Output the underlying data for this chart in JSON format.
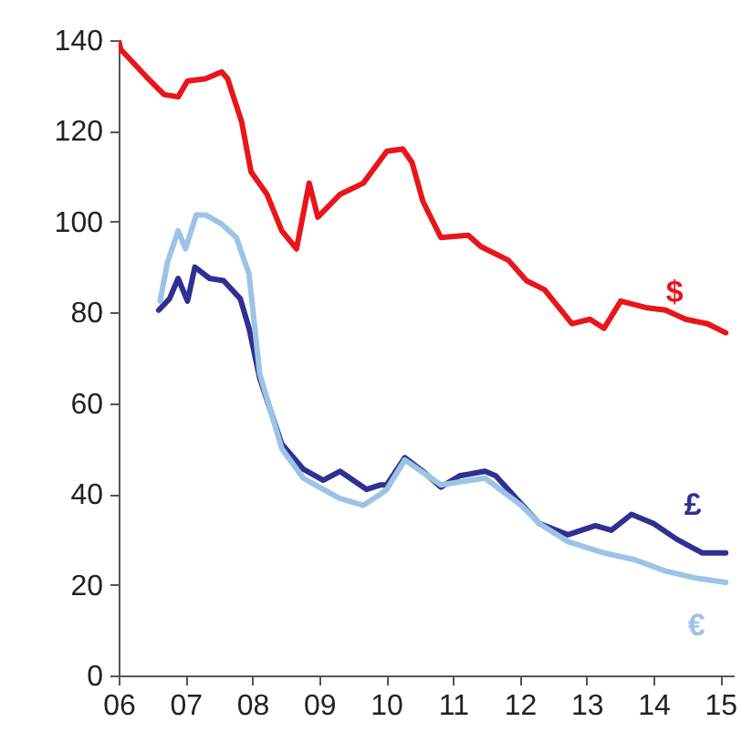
{
  "chart_data": {
    "type": "line",
    "xlim": [
      2006,
      2015.2
    ],
    "xticks": [
      {
        "value": 2006,
        "label": "06"
      },
      {
        "value": 2007,
        "label": "07"
      },
      {
        "value": 2008,
        "label": "08"
      },
      {
        "value": 2009,
        "label": "09"
      },
      {
        "value": 2010,
        "label": "10"
      },
      {
        "value": 2011,
        "label": "11"
      },
      {
        "value": 2012,
        "label": "12"
      },
      {
        "value": 2013,
        "label": "13"
      },
      {
        "value": 2014,
        "label": "14"
      },
      {
        "value": 2015,
        "label": "15"
      }
    ],
    "ylim": [
      0,
      140
    ],
    "yticks": [
      0,
      20,
      40,
      60,
      80,
      100,
      120,
      140
    ],
    "grid": false,
    "legend": false,
    "marker": "none",
    "line_style": "solid",
    "series": [
      {
        "name": "$",
        "color": "#e8151b",
        "x": [
          2006.0,
          2006.03,
          2006.41,
          2006.68,
          2006.89,
          2007.03,
          2007.3,
          2007.54,
          2007.63,
          2007.84,
          2007.98,
          2008.22,
          2008.44,
          2008.66,
          2008.85,
          2008.98,
          2009.31,
          2009.66,
          2010.01,
          2010.25,
          2010.39,
          2010.55,
          2010.82,
          2011.23,
          2011.42,
          2011.83,
          2012.1,
          2012.37,
          2012.78,
          2013.05,
          2013.26,
          2013.51,
          2013.91,
          2014.18,
          2014.48,
          2014.81,
          2015.08
        ],
        "values": [
          140,
          138,
          132,
          128,
          127.5,
          131,
          131.5,
          133,
          131.5,
          122,
          111,
          106,
          98,
          94,
          108.5,
          101,
          106,
          108.5,
          115.5,
          116,
          113,
          104.5,
          96.5,
          97,
          94.5,
          91.5,
          87,
          85,
          77.5,
          78.5,
          76.5,
          82.5,
          81,
          80.5,
          78.5,
          77.5,
          75.5
        ]
      },
      {
        "name": "£",
        "color": "#2e3192",
        "x": [
          2006.6,
          2006.76,
          2006.89,
          2007.03,
          2007.14,
          2007.36,
          2007.57,
          2007.82,
          2007.95,
          2008.11,
          2008.44,
          2008.76,
          2009.06,
          2009.31,
          2009.71,
          2009.92,
          2010.01,
          2010.28,
          2010.55,
          2010.82,
          2011.1,
          2011.48,
          2011.64,
          2012.04,
          2012.29,
          2012.72,
          2013.13,
          2013.37,
          2013.67,
          2014.0,
          2014.35,
          2014.73,
          2015.08
        ],
        "values": [
          80.5,
          83,
          87.5,
          82.5,
          90,
          87.5,
          87,
          83,
          76.5,
          65.5,
          51,
          45.5,
          43,
          45,
          41,
          42,
          42,
          48,
          45,
          41.5,
          44,
          45,
          44,
          37.5,
          33.5,
          31,
          33,
          32,
          35.5,
          33.5,
          30,
          27,
          27
        ]
      },
      {
        "name": "€",
        "color": "#9dc3e6",
        "x": [
          2006.62,
          2006.73,
          2006.89,
          2007.0,
          2007.16,
          2007.3,
          2007.54,
          2007.76,
          2007.95,
          2008.11,
          2008.44,
          2008.76,
          2009.06,
          2009.31,
          2009.66,
          2009.92,
          2010.01,
          2010.28,
          2010.82,
          2011.48,
          2012.02,
          2012.29,
          2012.72,
          2013.26,
          2013.72,
          2014.18,
          2014.62,
          2015.08
        ],
        "values": [
          82.5,
          91,
          98,
          94,
          101.5,
          101.5,
          99.5,
          96.5,
          88.5,
          66.5,
          50,
          43.5,
          41,
          39,
          37.5,
          40,
          41,
          47.5,
          42,
          43.5,
          37.5,
          33.5,
          29.5,
          27,
          25.5,
          23,
          21.5,
          20.5
        ]
      }
    ]
  }
}
